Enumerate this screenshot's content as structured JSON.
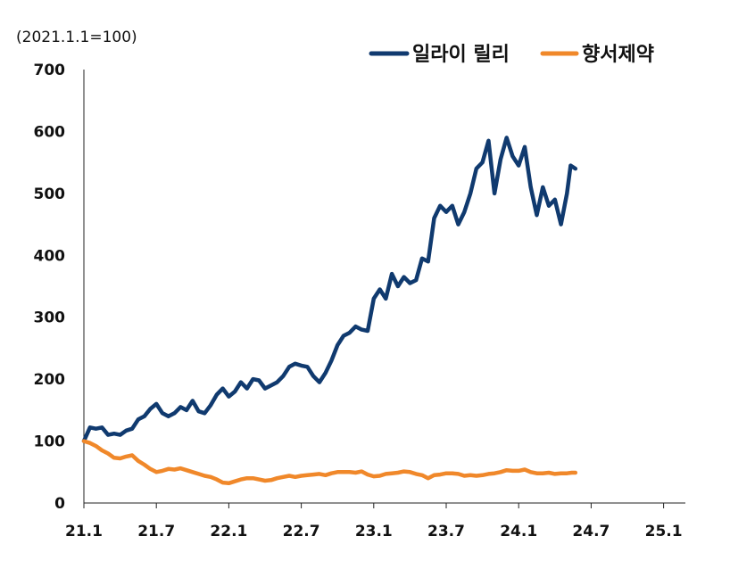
{
  "chart_data": {
    "type": "line",
    "unit_label": "(2021.1.1=100)",
    "ylim": [
      0,
      700
    ],
    "y_ticks": [
      0,
      100,
      200,
      300,
      400,
      500,
      600,
      700
    ],
    "x_ticks": [
      "21.1",
      "21.7",
      "22.1",
      "22.7",
      "23.1",
      "23.7",
      "24.1",
      "24.7",
      "25.1"
    ],
    "x_range": [
      0,
      50.7
    ],
    "legend_position": "top-right",
    "grid": false,
    "series": [
      {
        "name": "일라이 릴리",
        "color": "#103A6F",
        "points": [
          [
            0.0,
            100
          ],
          [
            0.5,
            122
          ],
          [
            1.0,
            120
          ],
          [
            1.5,
            122
          ],
          [
            2.0,
            110
          ],
          [
            2.5,
            112
          ],
          [
            3.0,
            110
          ],
          [
            3.5,
            117
          ],
          [
            4.0,
            120
          ],
          [
            4.5,
            135
          ],
          [
            5.0,
            140
          ],
          [
            5.5,
            152
          ],
          [
            6.0,
            160
          ],
          [
            6.5,
            145
          ],
          [
            7.0,
            140
          ],
          [
            7.5,
            145
          ],
          [
            8.0,
            155
          ],
          [
            8.5,
            150
          ],
          [
            9.0,
            165
          ],
          [
            9.5,
            148
          ],
          [
            10.0,
            145
          ],
          [
            10.5,
            158
          ],
          [
            11.0,
            175
          ],
          [
            11.5,
            185
          ],
          [
            12.0,
            172
          ],
          [
            12.5,
            180
          ],
          [
            13.0,
            195
          ],
          [
            13.5,
            185
          ],
          [
            14.0,
            200
          ],
          [
            14.5,
            198
          ],
          [
            15.0,
            185
          ],
          [
            15.5,
            190
          ],
          [
            16.0,
            195
          ],
          [
            16.5,
            205
          ],
          [
            17.0,
            220
          ],
          [
            17.5,
            225
          ],
          [
            18.0,
            222
          ],
          [
            18.5,
            220
          ],
          [
            19.0,
            205
          ],
          [
            19.5,
            195
          ],
          [
            20.0,
            210
          ],
          [
            20.5,
            230
          ],
          [
            21.0,
            255
          ],
          [
            21.5,
            270
          ],
          [
            22.0,
            275
          ],
          [
            22.5,
            285
          ],
          [
            23.0,
            280
          ],
          [
            23.5,
            278
          ],
          [
            24.0,
            330
          ],
          [
            24.5,
            345
          ],
          [
            25.0,
            330
          ],
          [
            25.5,
            370
          ],
          [
            26.0,
            350
          ],
          [
            26.5,
            365
          ],
          [
            27.0,
            355
          ],
          [
            27.5,
            360
          ],
          [
            28.0,
            395
          ],
          [
            28.5,
            390
          ],
          [
            29.0,
            460
          ],
          [
            29.5,
            480
          ],
          [
            30.0,
            470
          ],
          [
            30.5,
            480
          ],
          [
            31.0,
            450
          ],
          [
            31.5,
            470
          ],
          [
            32.0,
            500
          ],
          [
            32.5,
            540
          ],
          [
            33.0,
            550
          ],
          [
            33.5,
            585
          ],
          [
            34.0,
            500
          ],
          [
            34.5,
            555
          ],
          [
            35.0,
            590
          ],
          [
            35.5,
            560
          ],
          [
            36.0,
            545
          ],
          [
            36.5,
            575
          ],
          [
            37.0,
            510
          ],
          [
            37.5,
            465
          ],
          [
            38.0,
            510
          ],
          [
            38.5,
            480
          ],
          [
            39.0,
            490
          ],
          [
            39.5,
            450
          ],
          [
            40.0,
            500
          ],
          [
            40.3,
            545
          ],
          [
            40.7,
            540
          ]
        ]
      },
      {
        "name": "향서제약",
        "color": "#F0882A",
        "points": [
          [
            0.0,
            100
          ],
          [
            0.5,
            97
          ],
          [
            1.0,
            92
          ],
          [
            1.5,
            85
          ],
          [
            2.0,
            80
          ],
          [
            2.5,
            73
          ],
          [
            3.0,
            72
          ],
          [
            3.5,
            75
          ],
          [
            4.0,
            77
          ],
          [
            4.5,
            68
          ],
          [
            5.0,
            62
          ],
          [
            5.5,
            55
          ],
          [
            6.0,
            50
          ],
          [
            6.5,
            52
          ],
          [
            7.0,
            55
          ],
          [
            7.5,
            54
          ],
          [
            8.0,
            56
          ],
          [
            8.5,
            53
          ],
          [
            9.0,
            50
          ],
          [
            9.5,
            47
          ],
          [
            10.0,
            44
          ],
          [
            10.5,
            42
          ],
          [
            11.0,
            38
          ],
          [
            11.5,
            33
          ],
          [
            12.0,
            32
          ],
          [
            12.5,
            35
          ],
          [
            13.0,
            38
          ],
          [
            13.5,
            40
          ],
          [
            14.0,
            40
          ],
          [
            14.5,
            38
          ],
          [
            15.0,
            36
          ],
          [
            15.5,
            37
          ],
          [
            16.0,
            40
          ],
          [
            16.5,
            42
          ],
          [
            17.0,
            44
          ],
          [
            17.5,
            42
          ],
          [
            18.0,
            44
          ],
          [
            18.5,
            45
          ],
          [
            19.0,
            46
          ],
          [
            19.5,
            47
          ],
          [
            20.0,
            45
          ],
          [
            20.5,
            48
          ],
          [
            21.0,
            50
          ],
          [
            21.5,
            50
          ],
          [
            22.0,
            50
          ],
          [
            22.5,
            49
          ],
          [
            23.0,
            51
          ],
          [
            23.5,
            46
          ],
          [
            24.0,
            43
          ],
          [
            24.5,
            44
          ],
          [
            25.0,
            47
          ],
          [
            25.5,
            48
          ],
          [
            26.0,
            49
          ],
          [
            26.5,
            51
          ],
          [
            27.0,
            50
          ],
          [
            27.5,
            47
          ],
          [
            28.0,
            45
          ],
          [
            28.5,
            40
          ],
          [
            29.0,
            45
          ],
          [
            29.5,
            46
          ],
          [
            30.0,
            48
          ],
          [
            30.5,
            48
          ],
          [
            31.0,
            47
          ],
          [
            31.5,
            44
          ],
          [
            32.0,
            45
          ],
          [
            32.5,
            44
          ],
          [
            33.0,
            45
          ],
          [
            33.5,
            47
          ],
          [
            34.0,
            48
          ],
          [
            34.5,
            50
          ],
          [
            35.0,
            53
          ],
          [
            35.5,
            52
          ],
          [
            36.0,
            52
          ],
          [
            36.5,
            54
          ],
          [
            37.0,
            50
          ],
          [
            37.5,
            48
          ],
          [
            38.0,
            48
          ],
          [
            38.5,
            49
          ],
          [
            39.0,
            47
          ],
          [
            39.5,
            48
          ],
          [
            40.0,
            48
          ],
          [
            40.4,
            49
          ],
          [
            40.7,
            49
          ]
        ]
      }
    ]
  }
}
